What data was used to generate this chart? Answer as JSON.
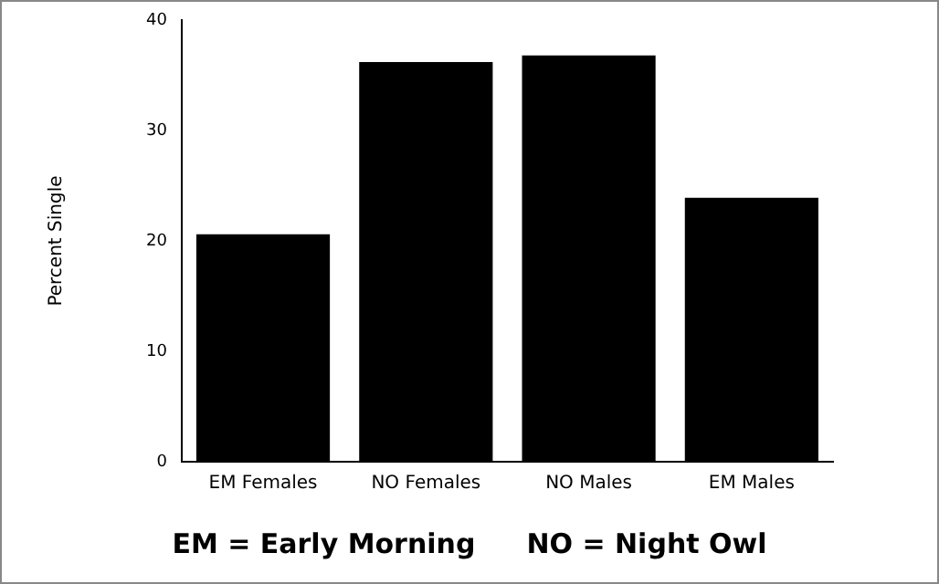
{
  "chart_data": {
    "type": "bar",
    "ylabel": "Percent Single",
    "categories": [
      "EM Females",
      "NO Females",
      "NO Males",
      "EM Males"
    ],
    "values": [
      20.6,
      36.2,
      36.8,
      23.9
    ],
    "color": "#000000",
    "ylim": [
      0,
      40
    ],
    "yticks": [
      0,
      10,
      20,
      30,
      40
    ],
    "grid": false,
    "legend": false,
    "annotations": [
      "EM = Early Morning",
      "NO = Night Owl"
    ]
  }
}
